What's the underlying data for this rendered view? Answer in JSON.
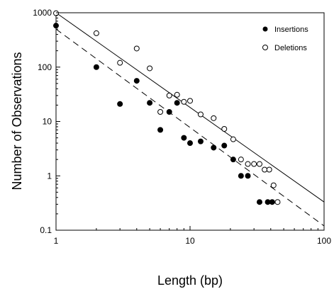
{
  "chart_data": {
    "type": "scatter",
    "xlabel": "Length (bp)",
    "ylabel": "Number of Observations",
    "xscale": "log",
    "yscale": "log",
    "xlim": [
      1,
      100
    ],
    "ylim": [
      0.1,
      1000
    ],
    "x_ticks": [
      1,
      10,
      100
    ],
    "y_ticks": [
      0.1,
      1,
      10,
      100,
      1000
    ],
    "x_tick_labels": [
      "1",
      "10",
      "100"
    ],
    "y_tick_labels": [
      "0.1",
      "1",
      "10",
      "100",
      "1000"
    ],
    "grid": false,
    "legend_position": "top-right",
    "series": [
      {
        "name": "Insertions",
        "marker": "filled-circle",
        "points": [
          [
            1,
            580
          ],
          [
            2,
            100
          ],
          [
            3,
            21
          ],
          [
            4,
            56
          ],
          [
            5,
            22
          ],
          [
            6,
            7
          ],
          [
            7,
            15
          ],
          [
            8,
            22
          ],
          [
            9,
            5
          ],
          [
            10,
            4
          ],
          [
            12,
            4.3
          ],
          [
            15,
            3.3
          ],
          [
            18,
            3.6
          ],
          [
            21,
            2
          ],
          [
            24,
            1
          ],
          [
            27,
            1
          ],
          [
            33,
            0.33
          ],
          [
            38,
            0.33
          ],
          [
            41,
            0.33
          ]
        ]
      },
      {
        "name": "Deletions",
        "marker": "open-circle",
        "points": [
          [
            1,
            980
          ],
          [
            2,
            420
          ],
          [
            3,
            120
          ],
          [
            4,
            220
          ],
          [
            5,
            95
          ],
          [
            6,
            15
          ],
          [
            7,
            30
          ],
          [
            8,
            31
          ],
          [
            9,
            23
          ],
          [
            10,
            24
          ],
          [
            12,
            13.5
          ],
          [
            15,
            11.5
          ],
          [
            18,
            7.3
          ],
          [
            21,
            4.7
          ],
          [
            24,
            2
          ],
          [
            27,
            1.65
          ],
          [
            30,
            1.65
          ],
          [
            33,
            1.65
          ],
          [
            36,
            1.3
          ],
          [
            39,
            1.3
          ],
          [
            42,
            0.67
          ],
          [
            45,
            0.33
          ]
        ]
      }
    ],
    "fit_lines": [
      {
        "style": "solid",
        "from": [
          1,
          1000
        ],
        "to": [
          100,
          0.33
        ]
      },
      {
        "style": "dashed",
        "from": [
          1,
          500
        ],
        "to": [
          100,
          0.12
        ]
      }
    ]
  }
}
